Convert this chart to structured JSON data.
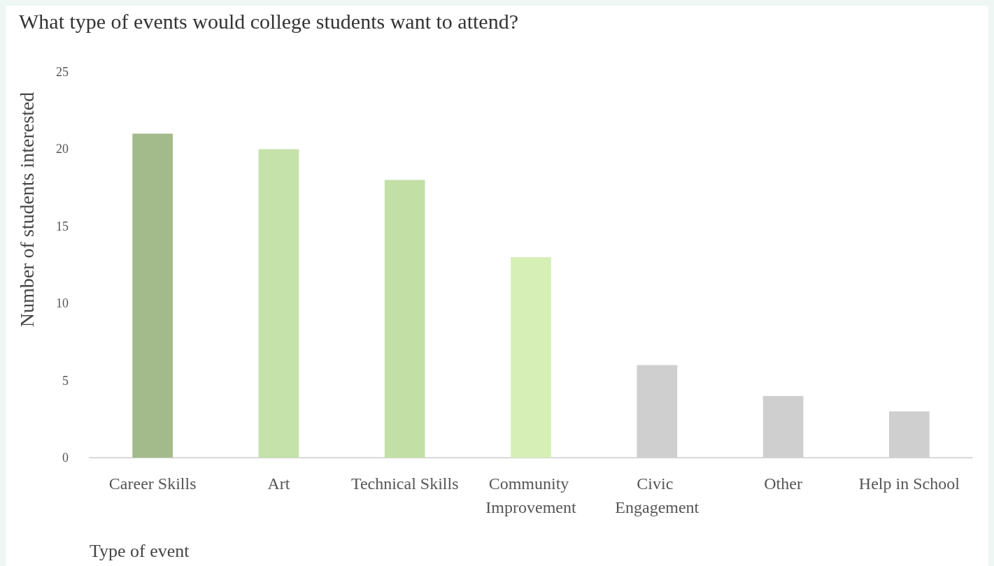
{
  "chart_data": {
    "type": "bar",
    "title": "What type of events would college students want to attend?",
    "xlabel": "Type of event",
    "ylabel": "Number of students interested",
    "categories": [
      "Career Skills",
      "Art",
      "Technical Skills",
      "Community Improvement",
      "Civic Engagement",
      "Other",
      "Help in School"
    ],
    "values": [
      21,
      20,
      18,
      13,
      6,
      4,
      3
    ],
    "colors": [
      "#a3bb8a",
      "#c4e2a9",
      "#c2e0a6",
      "#d6efb6",
      "#cfcfcf",
      "#cfcfcf",
      "#cfcfcf"
    ],
    "ylim": [
      0,
      25
    ],
    "yticks": [
      0,
      5,
      10,
      15,
      20,
      25
    ],
    "grid": false
  }
}
